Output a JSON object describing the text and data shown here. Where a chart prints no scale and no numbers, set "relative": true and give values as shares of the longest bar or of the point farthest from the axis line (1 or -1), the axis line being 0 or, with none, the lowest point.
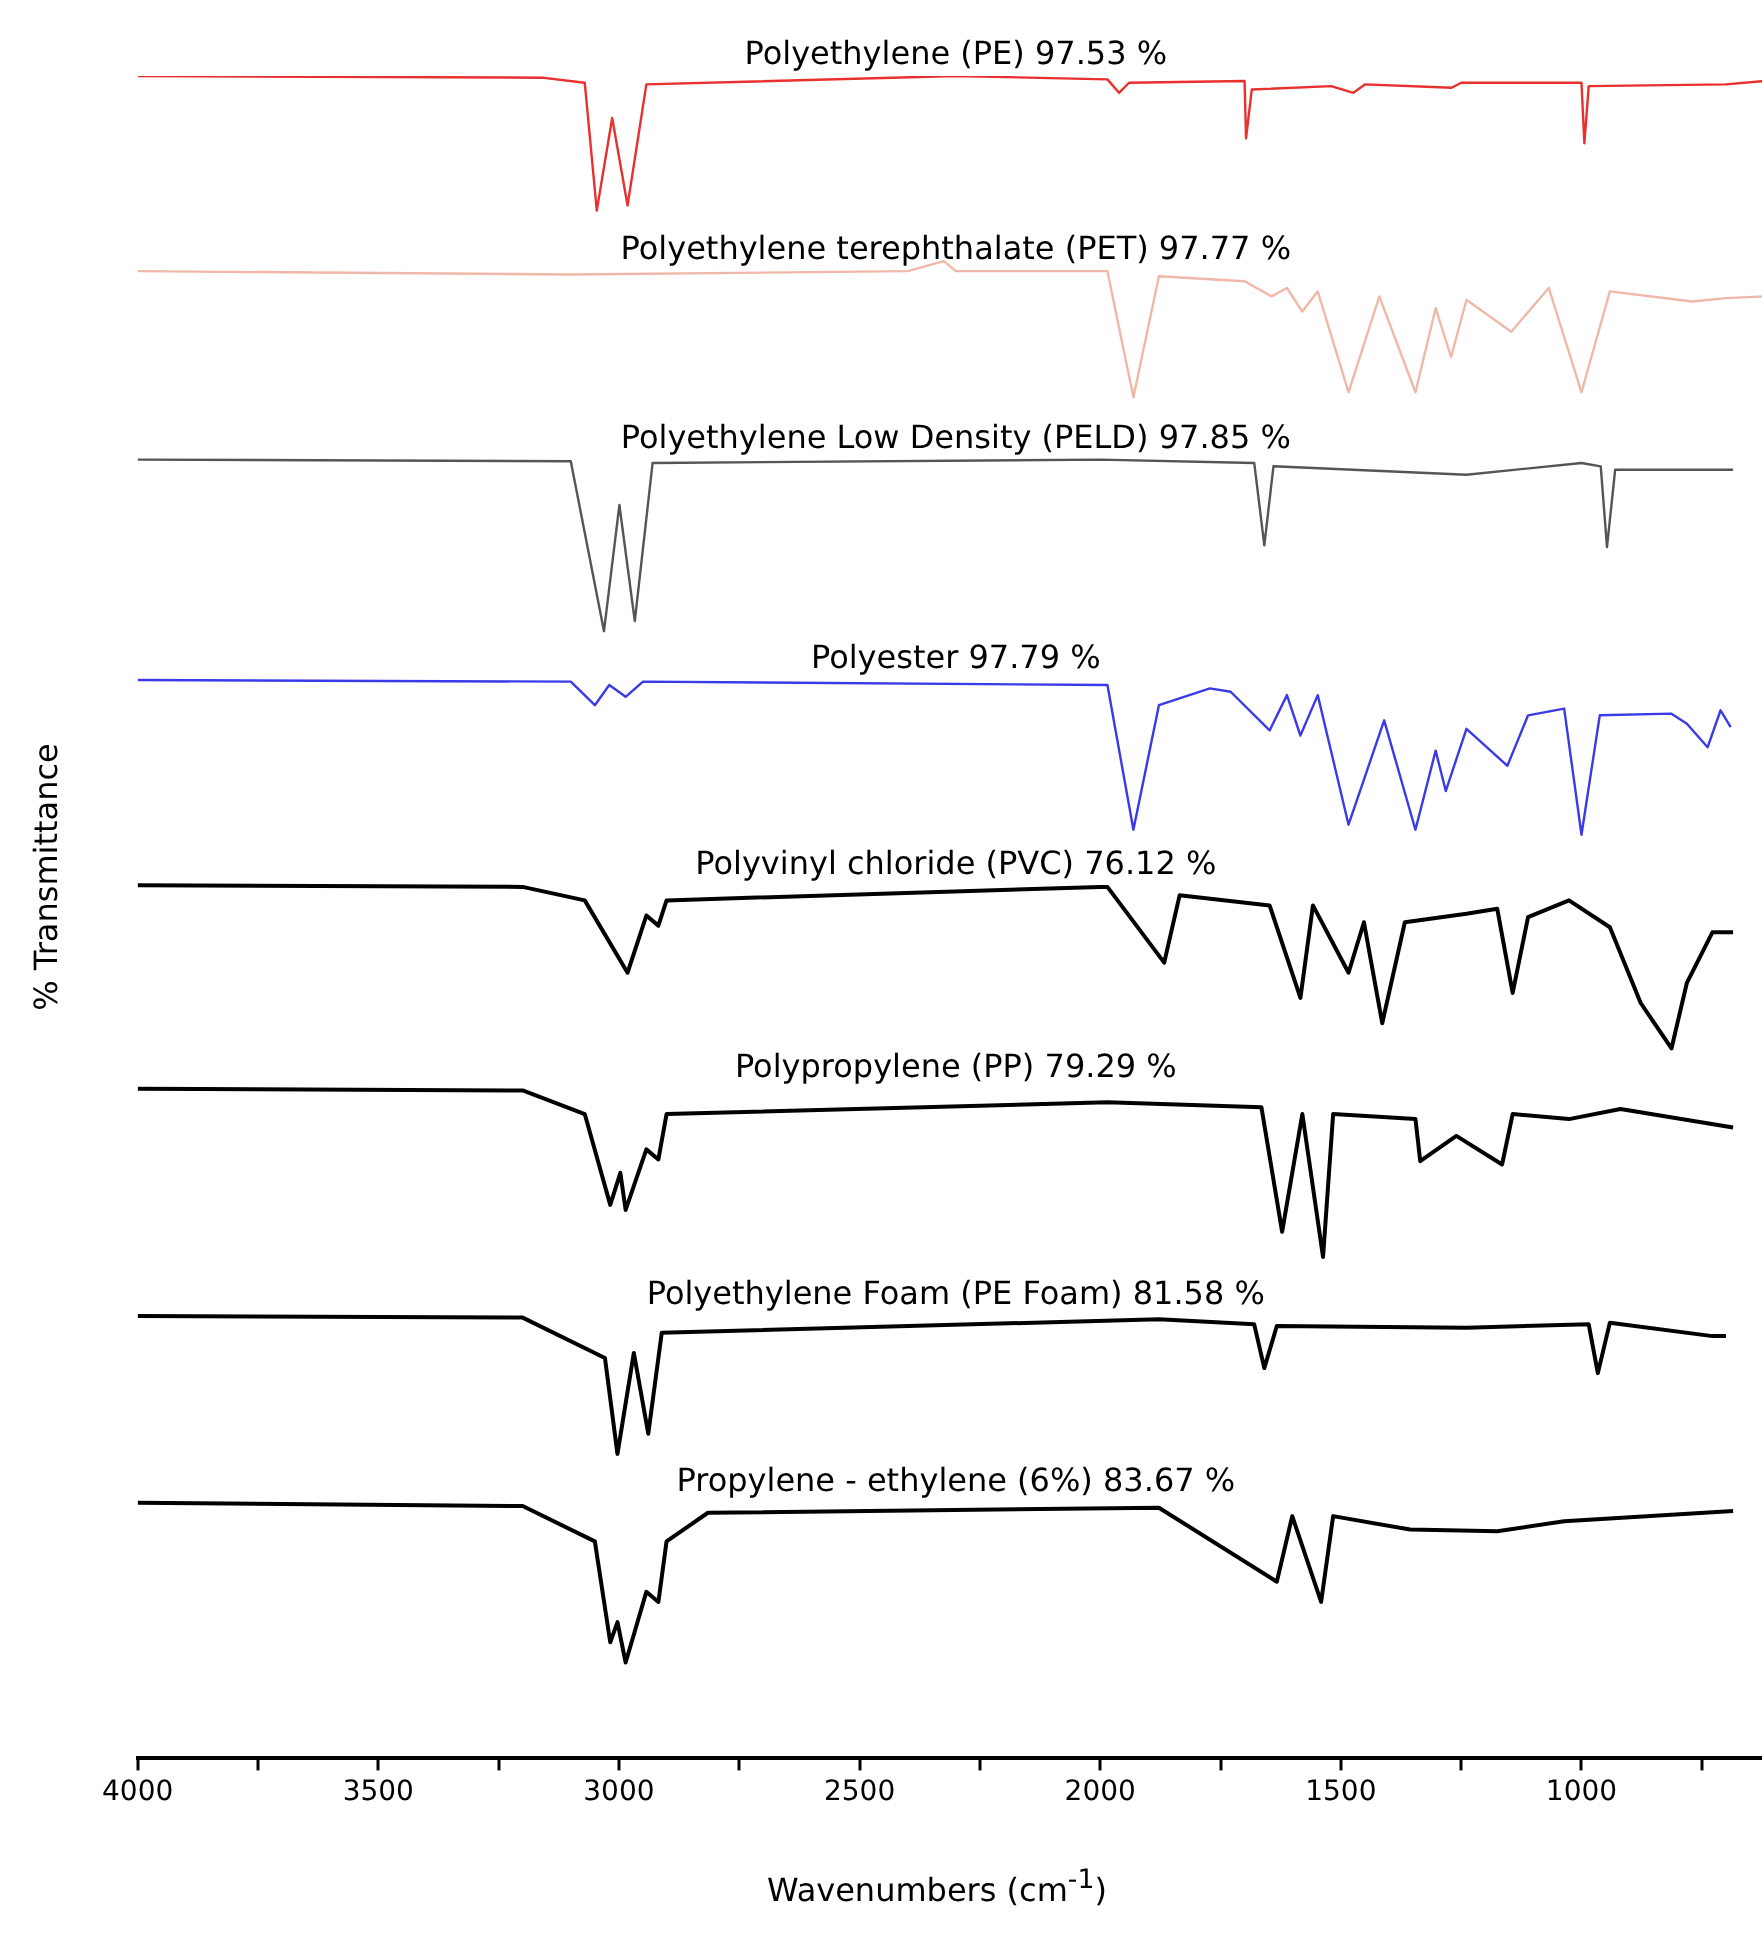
{
  "chart_data": {
    "type": "line",
    "relative": true,
    "xlabel": "Wavenumbers (cm$^{-1}$)",
    "ylabel": "% Transmittance",
    "xlim": [
      4000,
      600
    ],
    "xticks": [
      4000,
      {
        "value": 3750,
        "label": null
      },
      3500,
      {
        "value": 3250,
        "label": null
      },
      3000,
      {
        "value": 2750,
        "label": null
      },
      2500,
      {
        "value": 2250,
        "label": null
      },
      2000,
      {
        "value": 1750,
        "label": null
      },
      1500,
      {
        "value": 1250,
        "label": null
      },
      1000,
      {
        "value": 750,
        "label": null
      }
    ],
    "grid": false,
    "legend": false,
    "marker": "none",
    "line_style": "solid",
    "series": [
      {
        "name": "Polyethylene (PE) 97.53 %",
        "color": "#e8302e",
        "x": [
          4000,
          3160,
          3071,
          3046,
          3014,
          2982,
          2943,
          2300,
          1985,
          1961,
          1940,
          1700,
          1697,
          1685,
          1520,
          1474,
          1450,
          1270,
          1250,
          1000,
          994,
          985,
          700,
          620
        ],
        "values": [
          1.0,
          0.999,
          0.996,
          0.92,
          0.975,
          0.923,
          0.995,
          1.0,
          0.998,
          0.99,
          0.996,
          0.997,
          0.963,
          0.992,
          0.994,
          0.99,
          0.995,
          0.993,
          0.996,
          0.996,
          0.96,
          0.994,
          0.995,
          0.997
        ]
      },
      {
        "name": "Polyethylene terephthalate (PET) 97.77 %",
        "color": "#f0b8a8",
        "x": [
          4000,
          3100,
          2400,
          2325,
          2300,
          1985,
          1931,
          1878,
          1700,
          1644,
          1612,
          1580,
          1548,
          1484,
          1420,
          1345,
          1303,
          1271,
          1239,
          1146,
          1068,
          1000,
          941,
          770,
          700,
          620
        ],
        "values": [
          0.884,
          0.882,
          0.884,
          0.89,
          0.884,
          0.884,
          0.809,
          0.881,
          0.878,
          0.869,
          0.874,
          0.86,
          0.872,
          0.812,
          0.869,
          0.812,
          0.862,
          0.833,
          0.867,
          0.848,
          0.874,
          0.812,
          0.872,
          0.866,
          0.868,
          0.869
        ]
      },
      {
        "name": "Polyethylene Low Density (PELD) 97.85 %",
        "color": "#555555",
        "x": [
          4000,
          3100,
          3031,
          2999,
          2967,
          2930,
          2000,
          1680,
          1659,
          1640,
          1239,
          1000,
          960,
          947,
          930,
          685
        ],
        "values": [
          0.772,
          0.771,
          0.67,
          0.745,
          0.676,
          0.77,
          0.772,
          0.77,
          0.721,
          0.768,
          0.763,
          0.77,
          0.768,
          0.72,
          0.766,
          0.766
        ]
      },
      {
        "name": "Polyester 97.79 %",
        "color": "#3a3ae8",
        "x": [
          4000,
          3100,
          3050,
          3020,
          2986,
          2950,
          1985,
          1931,
          1878,
          1772,
          1729,
          1648,
          1612,
          1584,
          1548,
          1484,
          1410,
          1345,
          1303,
          1282,
          1239,
          1154,
          1111,
          1036,
          1000,
          962,
          813,
          781,
          738,
          711,
          690
        ],
        "values": [
          0.641,
          0.64,
          0.626,
          0.638,
          0.631,
          0.64,
          0.638,
          0.552,
          0.626,
          0.636,
          0.634,
          0.611,
          0.632,
          0.608,
          0.632,
          0.555,
          0.617,
          0.552,
          0.599,
          0.575,
          0.612,
          0.59,
          0.62,
          0.624,
          0.549,
          0.62,
          0.621,
          0.615,
          0.601,
          0.623,
          0.613
        ]
      },
      {
        "name": "Polyvinyl chloride (PVC) 76.12 %",
        "color": "#000000",
        "x": [
          4000,
          3200,
          3071,
          2982,
          2943,
          2918,
          2901,
          2000,
          1985,
          1867,
          1835,
          1648,
          1584,
          1558,
          1484,
          1452,
          1414,
          1367,
          1239,
          1175,
          1143,
          1111,
          1026,
          941,
          877,
          813,
          781,
          728,
          685
        ],
        "values": [
          0.519,
          0.518,
          0.51,
          0.467,
          0.501,
          0.495,
          0.51,
          0.518,
          0.518,
          0.473,
          0.513,
          0.507,
          0.452,
          0.507,
          0.467,
          0.497,
          0.437,
          0.497,
          0.502,
          0.505,
          0.455,
          0.5,
          0.51,
          0.494,
          0.449,
          0.422,
          0.461,
          0.491,
          0.491
        ]
      },
      {
        "name": "Polypropylene (PP) 79.29 %",
        "color": "#000000",
        "x": [
          4000,
          3200,
          3071,
          3018,
          2997,
          2986,
          2943,
          2918,
          2901,
          1985,
          1665,
          1622,
          1580,
          1537,
          1516,
          1345,
          1335,
          1260,
          1165,
          1143,
          1026,
          919,
          685
        ],
        "values": [
          0.398,
          0.397,
          0.383,
          0.329,
          0.348,
          0.326,
          0.362,
          0.356,
          0.383,
          0.39,
          0.387,
          0.313,
          0.383,
          0.298,
          0.383,
          0.38,
          0.355,
          0.37,
          0.353,
          0.383,
          0.38,
          0.386,
          0.375
        ]
      },
      {
        "name": "Polyethylene Foam (PE Foam) 81.58 %",
        "color": "#000000",
        "x": [
          4000,
          3200,
          3029,
          3003,
          2969,
          2939,
          2911,
          1878,
          1680,
          1659,
          1633,
          1239,
          985,
          966,
          941,
          728,
          700
        ],
        "values": [
          0.263,
          0.262,
          0.238,
          0.181,
          0.241,
          0.193,
          0.253,
          0.261,
          0.258,
          0.232,
          0.257,
          0.256,
          0.258,
          0.229,
          0.259,
          0.251,
          0.251
        ]
      },
      {
        "name": "Propylene - ethylene (6%) 83.67 %",
        "color": "#000000",
        "x": [
          4000,
          3200,
          3050,
          3018,
          3003,
          2986,
          2943,
          2918,
          2901,
          2815,
          1878,
          1633,
          1601,
          1541,
          1516,
          1356,
          1175,
          1036,
          685
        ],
        "values": [
          0.152,
          0.15,
          0.129,
          0.069,
          0.081,
          0.057,
          0.099,
          0.093,
          0.129,
          0.146,
          0.149,
          0.105,
          0.144,
          0.093,
          0.144,
          0.136,
          0.135,
          0.141,
          0.147
        ]
      }
    ]
  }
}
